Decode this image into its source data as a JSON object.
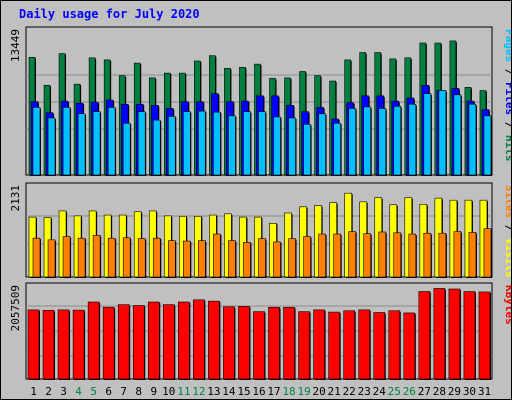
{
  "chart_data": [
    {
      "type": "bar",
      "title": "Daily usage for July 2020",
      "ylabel": "13449",
      "right_label": [
        {
          "text": "Pages",
          "color": "#00c0ff"
        },
        {
          "text": " / ",
          "color": "#000000"
        },
        {
          "text": "Files",
          "color": "#0000ff"
        },
        {
          "text": " / ",
          "color": "#000000"
        },
        {
          "text": "Hits",
          "color": "#008040"
        }
      ],
      "ymax": 13449,
      "categories": [
        "1",
        "2",
        "3",
        "4",
        "5",
        "6",
        "7",
        "8",
        "9",
        "10",
        "11",
        "12",
        "13",
        "14",
        "15",
        "16",
        "17",
        "18",
        "19",
        "20",
        "21",
        "22",
        "23",
        "24",
        "25",
        "26",
        "27",
        "28",
        "29",
        "30",
        "31"
      ],
      "weekend_days": [
        "4",
        "5",
        "11",
        "12",
        "18",
        "19",
        "25",
        "26"
      ],
      "series": [
        {
          "name": "Hits",
          "color": "#008040",
          "values": [
            11150,
            8500,
            11500,
            8600,
            11100,
            10900,
            9400,
            10600,
            9200,
            9650,
            9650,
            10800,
            11300,
            10100,
            10200,
            10500,
            9150,
            9200,
            9800,
            9400,
            8900,
            10900,
            11600,
            11600,
            11000,
            11100,
            12500,
            12500,
            12700,
            8300,
            8000
          ]
        },
        {
          "name": "Files",
          "color": "#0000ff",
          "values": [
            6950,
            5900,
            7000,
            6800,
            6900,
            7100,
            6700,
            6700,
            6600,
            6300,
            6950,
            6950,
            7700,
            6950,
            7000,
            7500,
            7500,
            6600,
            6000,
            6400,
            5300,
            6850,
            7500,
            7500,
            7000,
            7300,
            8500,
            8000,
            8200,
            7000,
            6200
          ]
        },
        {
          "name": "Pages",
          "color": "#00c0ff",
          "values": [
            6400,
            5400,
            6400,
            5800,
            6000,
            6400,
            4900,
            6000,
            5200,
            5550,
            6000,
            6050,
            5950,
            5600,
            6000,
            6000,
            5500,
            5400,
            4800,
            5800,
            4900,
            6300,
            6450,
            6300,
            6500,
            6700,
            7700,
            8000,
            7600,
            6700,
            5600
          ]
        }
      ]
    },
    {
      "type": "bar",
      "ylabel": "2131",
      "right_label": [
        {
          "text": "Sites",
          "color": "#ff8000"
        },
        {
          "text": " / ",
          "color": "#000000"
        },
        {
          "text": "Visits",
          "color": "#ffff00"
        }
      ],
      "ymax": 2131,
      "categories": [
        "1",
        "2",
        "3",
        "4",
        "5",
        "6",
        "7",
        "8",
        "9",
        "10",
        "11",
        "12",
        "13",
        "14",
        "15",
        "16",
        "17",
        "18",
        "19",
        "20",
        "21",
        "22",
        "23",
        "24",
        "25",
        "26",
        "27",
        "28",
        "29",
        "30",
        "31"
      ],
      "series": [
        {
          "name": "Visits",
          "color": "#ffff00",
          "values": [
            1450,
            1440,
            1600,
            1480,
            1600,
            1500,
            1500,
            1580,
            1600,
            1480,
            1470,
            1470,
            1500,
            1530,
            1450,
            1450,
            1300,
            1550,
            1700,
            1730,
            1800,
            2030,
            1820,
            1920,
            1750,
            1920,
            1760,
            1910,
            1860,
            1860,
            1860
          ]
        },
        {
          "name": "Sites",
          "color": "#ff8000",
          "values": [
            940,
            900,
            980,
            940,
            1010,
            940,
            950,
            930,
            940,
            880,
            870,
            880,
            1040,
            880,
            840,
            930,
            850,
            930,
            980,
            1040,
            1040,
            1100,
            1050,
            1090,
            1070,
            1040,
            1060,
            1060,
            1100,
            1080,
            1170
          ]
        }
      ]
    },
    {
      "type": "bar",
      "ylabel": "2057509",
      "right_label": [
        {
          "text": "KBytes",
          "color": "#ff0000"
        }
      ],
      "ymax": 2057509,
      "categories": [
        "1",
        "2",
        "3",
        "4",
        "5",
        "6",
        "7",
        "8",
        "9",
        "10",
        "11",
        "12",
        "13",
        "14",
        "15",
        "16",
        "17",
        "18",
        "19",
        "20",
        "21",
        "22",
        "23",
        "24",
        "25",
        "26",
        "27",
        "28",
        "29",
        "30",
        "31"
      ],
      "series": [
        {
          "name": "KBytes",
          "color": "#ff0000",
          "values": [
            1580000,
            1570000,
            1580000,
            1575000,
            1760000,
            1640000,
            1700000,
            1680000,
            1760000,
            1700000,
            1760000,
            1810000,
            1780000,
            1650000,
            1660000,
            1540000,
            1640000,
            1640000,
            1540000,
            1580000,
            1530000,
            1560000,
            1580000,
            1520000,
            1560000,
            1510000,
            2000000,
            2070000,
            2057509,
            2000000,
            1990000
          ]
        }
      ]
    }
  ]
}
